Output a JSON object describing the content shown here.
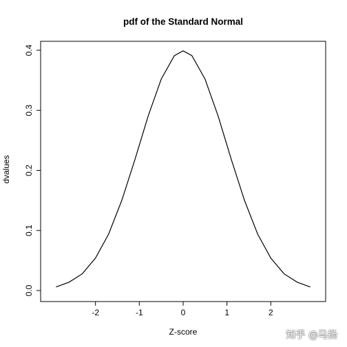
{
  "chart_data": {
    "type": "line",
    "title": "pdf of the Standard Normal",
    "xlabel": "Z-score",
    "ylabel": "dvalues",
    "xlim": [
      -3,
      3
    ],
    "ylim": [
      0,
      0.4
    ],
    "x_ticks": [
      "-2",
      "-1",
      "0",
      "1",
      "2"
    ],
    "x_tick_values": [
      -2,
      -1,
      0,
      1,
      2
    ],
    "y_ticks": [
      "0.0",
      "0.1",
      "0.2",
      "0.3",
      "0.4"
    ],
    "y_tick_values": [
      0,
      0.1,
      0.2,
      0.3,
      0.4
    ],
    "grid": false,
    "series": [
      {
        "color": "#000000",
        "x": [
          -2.9,
          -2.6,
          -2.3,
          -2.0,
          -1.7,
          -1.4,
          -1.1,
          -0.8,
          -0.5,
          -0.2,
          0.0,
          0.2,
          0.5,
          0.8,
          1.1,
          1.4,
          1.7,
          2.0,
          2.3,
          2.6,
          2.9
        ],
        "y": [
          0.006,
          0.014,
          0.028,
          0.054,
          0.094,
          0.15,
          0.218,
          0.29,
          0.352,
          0.391,
          0.399,
          0.391,
          0.352,
          0.29,
          0.218,
          0.15,
          0.094,
          0.054,
          0.028,
          0.014,
          0.006
        ]
      }
    ]
  },
  "watermark": "知乎 @马扬"
}
